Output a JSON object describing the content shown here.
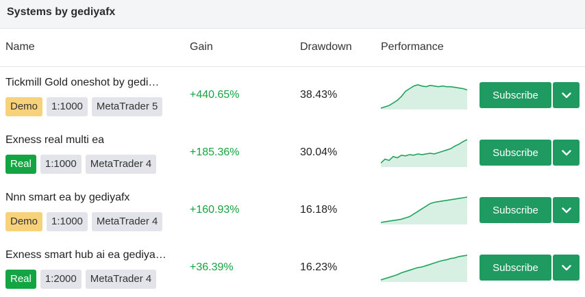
{
  "header": {
    "title": "Systems by gediyafx"
  },
  "columns": {
    "name": "Name",
    "gain": "Gain",
    "drawdown": "Drawdown",
    "performance": "Performance"
  },
  "colors": {
    "gain": "#14a33f",
    "subscribe": "#1f9a61",
    "demo_tag": "#f7d27a",
    "real_tag": "#13a544",
    "spark_line": "#1fa35c",
    "spark_fill": "#d8efe3"
  },
  "rows": [
    {
      "name": "Tickmill Gold oneshot by gedi…",
      "type": "Demo",
      "leverage": "1:1000",
      "platform": "MetaTrader 5",
      "gain": "+440.65%",
      "drawdown": "38.43%",
      "subscribe": "Subscribe",
      "dropdown_icon": "chevron-down-icon",
      "performance": [
        0,
        2,
        4,
        8,
        12,
        18,
        26,
        30,
        34,
        36,
        34,
        33,
        35,
        34,
        33,
        34,
        33,
        33,
        32,
        31,
        30,
        28
      ]
    },
    {
      "name": "Exness real multi ea",
      "type": "Real",
      "leverage": "1:1000",
      "platform": "MetaTrader 4",
      "gain": "+185.36%",
      "drawdown": "30.04%",
      "subscribe": "Subscribe",
      "dropdown_icon": "chevron-down-icon",
      "performance": [
        4,
        10,
        8,
        14,
        12,
        16,
        15,
        17,
        16,
        18,
        17,
        18,
        19,
        18,
        20,
        22,
        24,
        26,
        30,
        33,
        37,
        40
      ]
    },
    {
      "name": "Nnn smart ea by gediyafx",
      "type": "Demo",
      "leverage": "1:1000",
      "platform": "MetaTrader 4",
      "gain": "+160.93%",
      "drawdown": "16.18%",
      "subscribe": "Subscribe",
      "dropdown_icon": "chevron-down-icon",
      "performance": [
        1,
        2,
        3,
        4,
        5,
        6,
        8,
        10,
        14,
        18,
        22,
        26,
        30,
        32,
        33,
        34,
        35,
        36,
        37,
        38,
        39,
        40
      ]
    },
    {
      "name": "Exness smart hub ai ea gediya…",
      "type": "Real",
      "leverage": "1:2000",
      "platform": "MetaTrader 4",
      "gain": "+36.39%",
      "drawdown": "16.23%",
      "subscribe": "Subscribe",
      "dropdown_icon": "chevron-down-icon",
      "performance": [
        1,
        3,
        5,
        7,
        9,
        12,
        14,
        16,
        18,
        20,
        21,
        23,
        25,
        27,
        29,
        31,
        32,
        34,
        35,
        37,
        38,
        39
      ]
    }
  ]
}
